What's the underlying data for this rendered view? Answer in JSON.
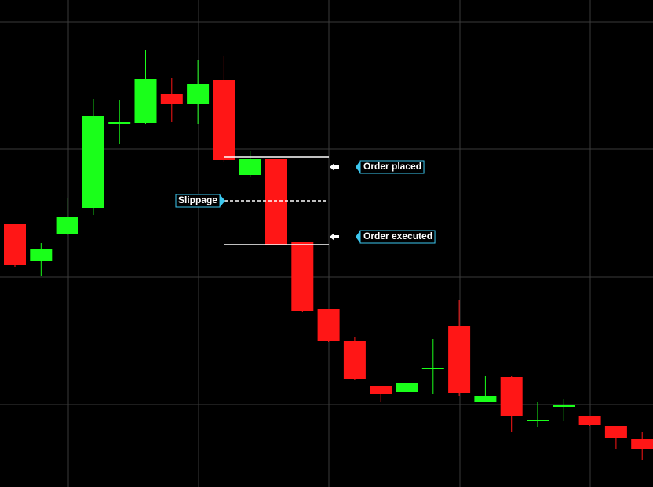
{
  "chart_data": {
    "type": "candlestick",
    "categories": [
      null,
      null,
      null,
      null,
      null,
      null,
      null,
      null,
      null,
      null,
      null,
      null,
      null,
      null,
      null,
      null,
      null,
      null,
      null,
      null,
      null,
      null,
      null,
      null,
      null
    ],
    "open": [
      336,
      288,
      323,
      356,
      464,
      464,
      501,
      489,
      519,
      398,
      418,
      312,
      227,
      186,
      129,
      121,
      151,
      205,
      109,
      140,
      85,
      103,
      91,
      78,
      61
    ],
    "high": [
      336,
      311,
      368,
      495,
      493,
      557,
      521,
      545,
      549,
      429,
      418,
      312,
      227,
      191,
      129,
      133,
      189,
      239,
      141,
      141,
      109,
      112,
      91,
      78,
      70
    ],
    "low": [
      281,
      269,
      321,
      347,
      437,
      463,
      465,
      463,
      415,
      395,
      309,
      223,
      185,
      136,
      109,
      90,
      119,
      116,
      108,
      70,
      77,
      84,
      78,
      49,
      34
    ],
    "close": [
      283,
      303,
      344,
      473,
      465,
      520,
      489,
      514,
      417,
      418,
      309,
      224,
      186,
      138,
      119,
      133,
      152,
      120,
      116,
      91,
      86,
      104,
      79,
      62,
      48
    ],
    "up_color": "#1aff1a",
    "down_color": "#ff1616",
    "ylim": [
      0,
      621
    ],
    "annotations": [
      {
        "text": "Order placed",
        "value": 421
      },
      {
        "text": "Slippage",
        "value": 365
      },
      {
        "text": "Order executed",
        "value": 309
      }
    ]
  }
}
